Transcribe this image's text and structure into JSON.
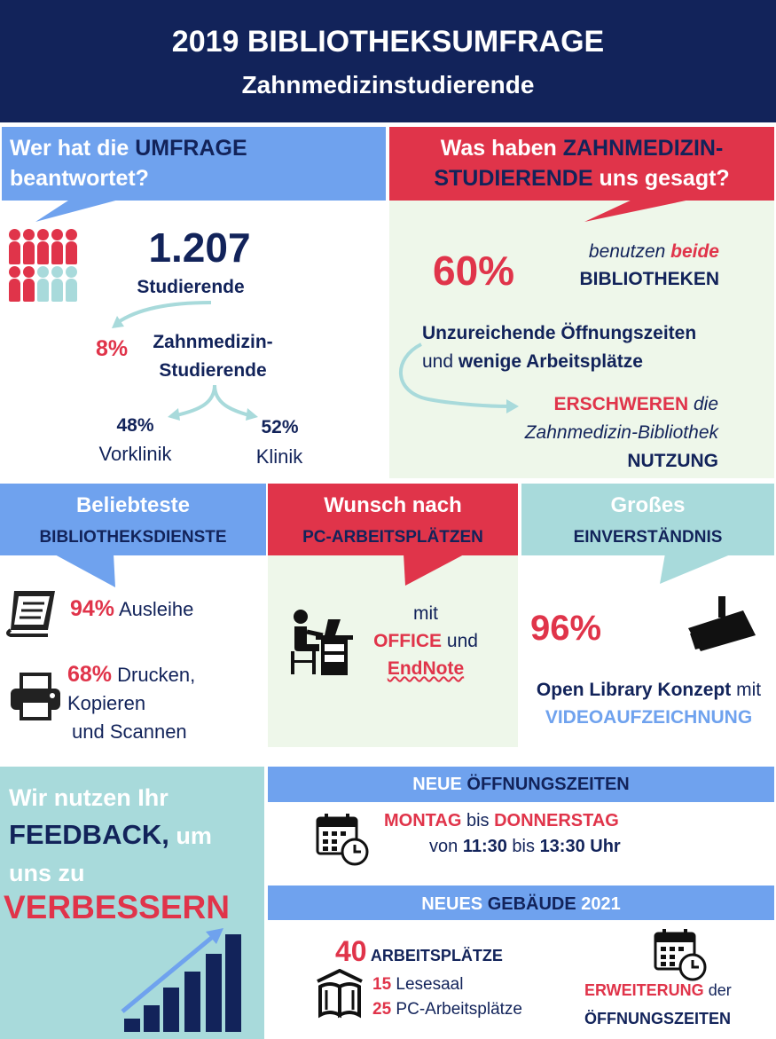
{
  "header": {
    "title": "2019 BIBLIOTHEKSUMFRAGE",
    "subtitle": "Zahnmedizinstudierende"
  },
  "colors": {
    "navy": "#12235a",
    "red": "#e0344a",
    "light_blue": "#6fa2ee",
    "teal": "#a8dadb",
    "mint": "#eef7ea"
  },
  "respondents": {
    "heading_1": "Wer hat die ",
    "heading_2": "UMFRAGE",
    "heading_3": "beantwortet?",
    "total": "1.207",
    "total_label": "Studierende",
    "dental_percent": "8%",
    "dental_label_1": "Zahnmedizin-",
    "dental_label_2": "Studierende",
    "pre_percent": "48%",
    "pre_label": "Vorklinik",
    "clinic_percent": "52%",
    "clinic_label": "Klinik",
    "icon": "people-icon"
  },
  "said": {
    "heading_1": "Was haben ",
    "heading_2": "ZAHNMEDIZIN-",
    "heading_3": "STUDIERENDE",
    "heading_4": " uns gesagt?",
    "percent": "60%",
    "use_1": "benutzen ",
    "use_2": "beide",
    "use_3": "BIBLIOTHEKEN",
    "problem_1": "Unzureichende Öffnungszeiten",
    "problem_2": "und ",
    "problem_3": "wenige Arbeitsplätze",
    "result_1": "ERSCHWEREN",
    "result_2": " die",
    "result_3": "Zahnmedizin-Bibliothek",
    "result_4": "NUTZUNG"
  },
  "services": {
    "heading_1": "Beliebteste",
    "heading_2": "BIBLIOTHEKSDIENSTE",
    "loan_percent": "94%",
    "loan_label": " Ausleihe",
    "print_percent": "68%",
    "print_label_1": " Drucken,",
    "print_label_2": "Kopieren",
    "print_label_3": "und Scannen",
    "book_icon": "book-icon",
    "printer_icon": "printer-icon"
  },
  "pc": {
    "heading_1": "Wunsch nach",
    "heading_2": "PC-ARBEITSPLÄTZEN",
    "line_1": "mit",
    "line_2a": "OFFICE",
    "line_2b": " und",
    "line_3": "EndNote",
    "icon": "desk-worker-icon"
  },
  "agreement": {
    "heading_1": "Großes",
    "heading_2": "EINVERSTÄNDNIS",
    "percent": "96%",
    "label_1": "Open Library Konzept",
    "label_2": " mit",
    "label_3": "VIDEOAUFZEICHNUNG",
    "icon": "camera-icon"
  },
  "feedback": {
    "line_1": "Wir nutzen Ihr",
    "line_2a": "FEEDBACK,",
    "line_2b": " um",
    "line_3": "uns zu",
    "line_4": "VERBESSERN",
    "icon": "growth-chart-icon"
  },
  "hours": {
    "heading_1": "NEUE ",
    "heading_2": "ÖFFNUNGSZEITEN",
    "day_1": "MONTAG",
    "day_mid": " bis ",
    "day_2": "DONNERSTAG",
    "time_1": "von ",
    "time_2": "11:30",
    "time_3": " bis ",
    "time_4": "13:30 Uhr",
    "icon": "calendar-clock-icon"
  },
  "building": {
    "heading_1": "NEUES ",
    "heading_2": "GEBÄUDE",
    "heading_3": " 2021",
    "seats_number": "40",
    "seats_label": " ARBEITSPLÄTZE",
    "reading_number": "15",
    "reading_label": " Lesesaal",
    "pc_number": "25",
    "pc_label": " PC-Arbeitsplätze",
    "extension_1": "ERWEITERUNG",
    "extension_2": " der",
    "extension_3": "ÖFFNUNGSZEITEN",
    "library_icon": "library-icon",
    "calendar_icon": "calendar-clock-icon"
  }
}
